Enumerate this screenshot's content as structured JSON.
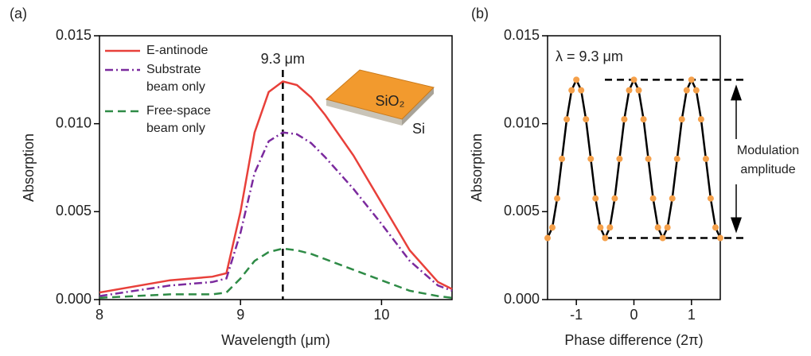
{
  "chart_data": [
    {
      "type": "line",
      "panel_label": "(a)",
      "xlabel": "Wavelength (μm)",
      "ylabel": "Absorption",
      "xlim": [
        8,
        10.5
      ],
      "xticks": [
        8,
        9,
        10
      ],
      "ylim": [
        0,
        0.015
      ],
      "yticks": [
        {
          "value": 0,
          "label": "0.000"
        },
        {
          "value": 0.005,
          "label": "0.005"
        },
        {
          "value": 0.01,
          "label": "0.010"
        },
        {
          "value": 0.015,
          "label": "0.015"
        }
      ],
      "x": [
        8,
        8.5,
        8.8,
        8.9,
        9.0,
        9.1,
        9.2,
        9.3,
        9.4,
        9.5,
        9.6,
        9.8,
        10.0,
        10.2,
        10.4,
        10.5
      ],
      "series": [
        {
          "name": "E-antinode",
          "color": "#e8403a",
          "dash": "solid",
          "values": [
            0.0004,
            0.0011,
            0.0013,
            0.0015,
            0.005,
            0.0095,
            0.0118,
            0.0124,
            0.0122,
            0.0115,
            0.0105,
            0.0082,
            0.0055,
            0.0028,
            0.001,
            0.0006
          ]
        },
        {
          "name": "Substrate beam only",
          "color": "#7b2a9e",
          "dash": "dashdot",
          "values": [
            0.0002,
            0.0008,
            0.001,
            0.0012,
            0.0038,
            0.0072,
            0.009,
            0.0095,
            0.0094,
            0.0089,
            0.0081,
            0.0063,
            0.0043,
            0.0022,
            0.0008,
            0.0005
          ]
        },
        {
          "name": "Free-space beam only",
          "color": "#2e8b46",
          "dash": "dash",
          "values": [
            0.0001,
            0.0003,
            0.0003,
            0.0004,
            0.0012,
            0.0022,
            0.0027,
            0.0029,
            0.0028,
            0.0026,
            0.0023,
            0.0017,
            0.0011,
            0.0005,
            0.0002,
            0.0001
          ]
        }
      ],
      "legend": "upper left",
      "vline": 9.3,
      "annotation": "9.3 μm",
      "inset_labels": [
        "SiO₂",
        "Si"
      ]
    },
    {
      "type": "line",
      "panel_label": "(b)",
      "xlabel": "Phase difference (2π)",
      "ylabel": "Absorption",
      "xlim": [
        -1.5,
        1.5
      ],
      "xticks": [
        -1,
        0,
        1
      ],
      "ylim": [
        0,
        0.015
      ],
      "yticks": [
        {
          "value": 0,
          "label": "0.000"
        },
        {
          "value": 0.005,
          "label": "0.005"
        },
        {
          "value": 0.01,
          "label": "0.010"
        },
        {
          "value": 0.015,
          "label": "0.015"
        }
      ],
      "x": [
        -1.5,
        -1.417,
        -1.333,
        -1.25,
        -1.167,
        -1.083,
        -1,
        -0.917,
        -0.833,
        -0.75,
        -0.667,
        -0.583,
        -0.5,
        -0.417,
        -0.333,
        -0.25,
        -0.167,
        -0.083,
        0,
        0.083,
        0.167,
        0.25,
        0.333,
        0.417,
        0.5,
        0.583,
        0.667,
        0.75,
        0.833,
        0.917,
        1,
        1.083,
        1.167,
        1.25,
        1.333,
        1.417,
        1.5
      ],
      "series": [
        {
          "color": "#000000",
          "marker_color": "#f5a04a",
          "dash": "solid",
          "values": [
            0.0035,
            0.0041,
            0.00575,
            0.008,
            0.01025,
            0.0119,
            0.0125,
            0.0119,
            0.01025,
            0.008,
            0.00575,
            0.0041,
            0.0035,
            0.0041,
            0.00575,
            0.008,
            0.01025,
            0.0119,
            0.0125,
            0.0119,
            0.01025,
            0.008,
            0.00575,
            0.0041,
            0.0035,
            0.0041,
            0.00575,
            0.008,
            0.01025,
            0.0119,
            0.0125,
            0.0119,
            0.01025,
            0.008,
            0.00575,
            0.0041,
            0.0035
          ]
        }
      ],
      "annotation": "λ = 9.3 μm",
      "hlines": [
        0.0125,
        0.0035
      ],
      "amplitude_label": [
        "Modulation",
        "amplitude"
      ]
    }
  ]
}
